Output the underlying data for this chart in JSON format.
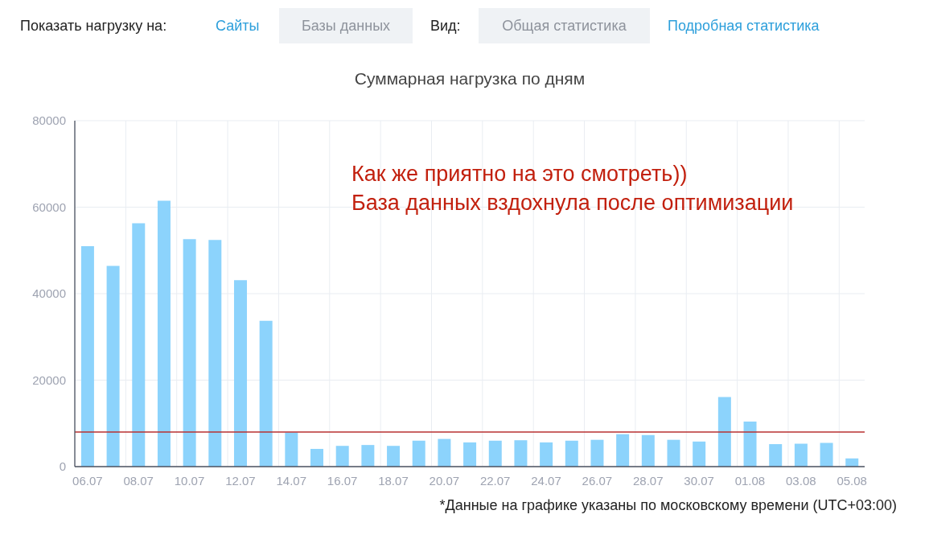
{
  "chart_data": {
    "type": "bar",
    "title": "Суммарная нагрузка по дням",
    "categories": [
      "06.07",
      null,
      "08.07",
      null,
      "10.07",
      null,
      "12.07",
      null,
      "14.07",
      null,
      "16.07",
      null,
      "18.07",
      null,
      "20.07",
      null,
      "22.07",
      null,
      "24.07",
      null,
      "26.07",
      null,
      "28.07",
      null,
      "30.07",
      null,
      "01.08",
      null,
      "03.08",
      null,
      "05.08"
    ],
    "values": [
      51000,
      46400,
      56300,
      61500,
      52600,
      52400,
      43100,
      33700,
      7900,
      4100,
      4800,
      5000,
      4800,
      6000,
      6400,
      5600,
      6000,
      6100,
      5600,
      6000,
      6200,
      7500,
      7300,
      6200,
      5800,
      16100,
      10400,
      5200,
      5300,
      5500,
      1900
    ],
    "color": "#8cd3fc",
    "ylim": [
      0,
      80000
    ],
    "yticks": [
      0,
      20000,
      40000,
      60000,
      80000
    ],
    "grid": true,
    "ref_lines": [
      {
        "axis": "y",
        "value": 8000,
        "color": "#b83030"
      }
    ],
    "annotations": [
      "Показать нагрузку на:",
      "Сайты",
      "Базы данных",
      "Вид:",
      "Общая статистика",
      "Подробная статистика",
      "Как же приятно на это смотреть))",
      "База данных вздохнула после оптимизации",
      "*Данные на графике указаны по московскому времени (UTC+03:00)"
    ]
  }
}
